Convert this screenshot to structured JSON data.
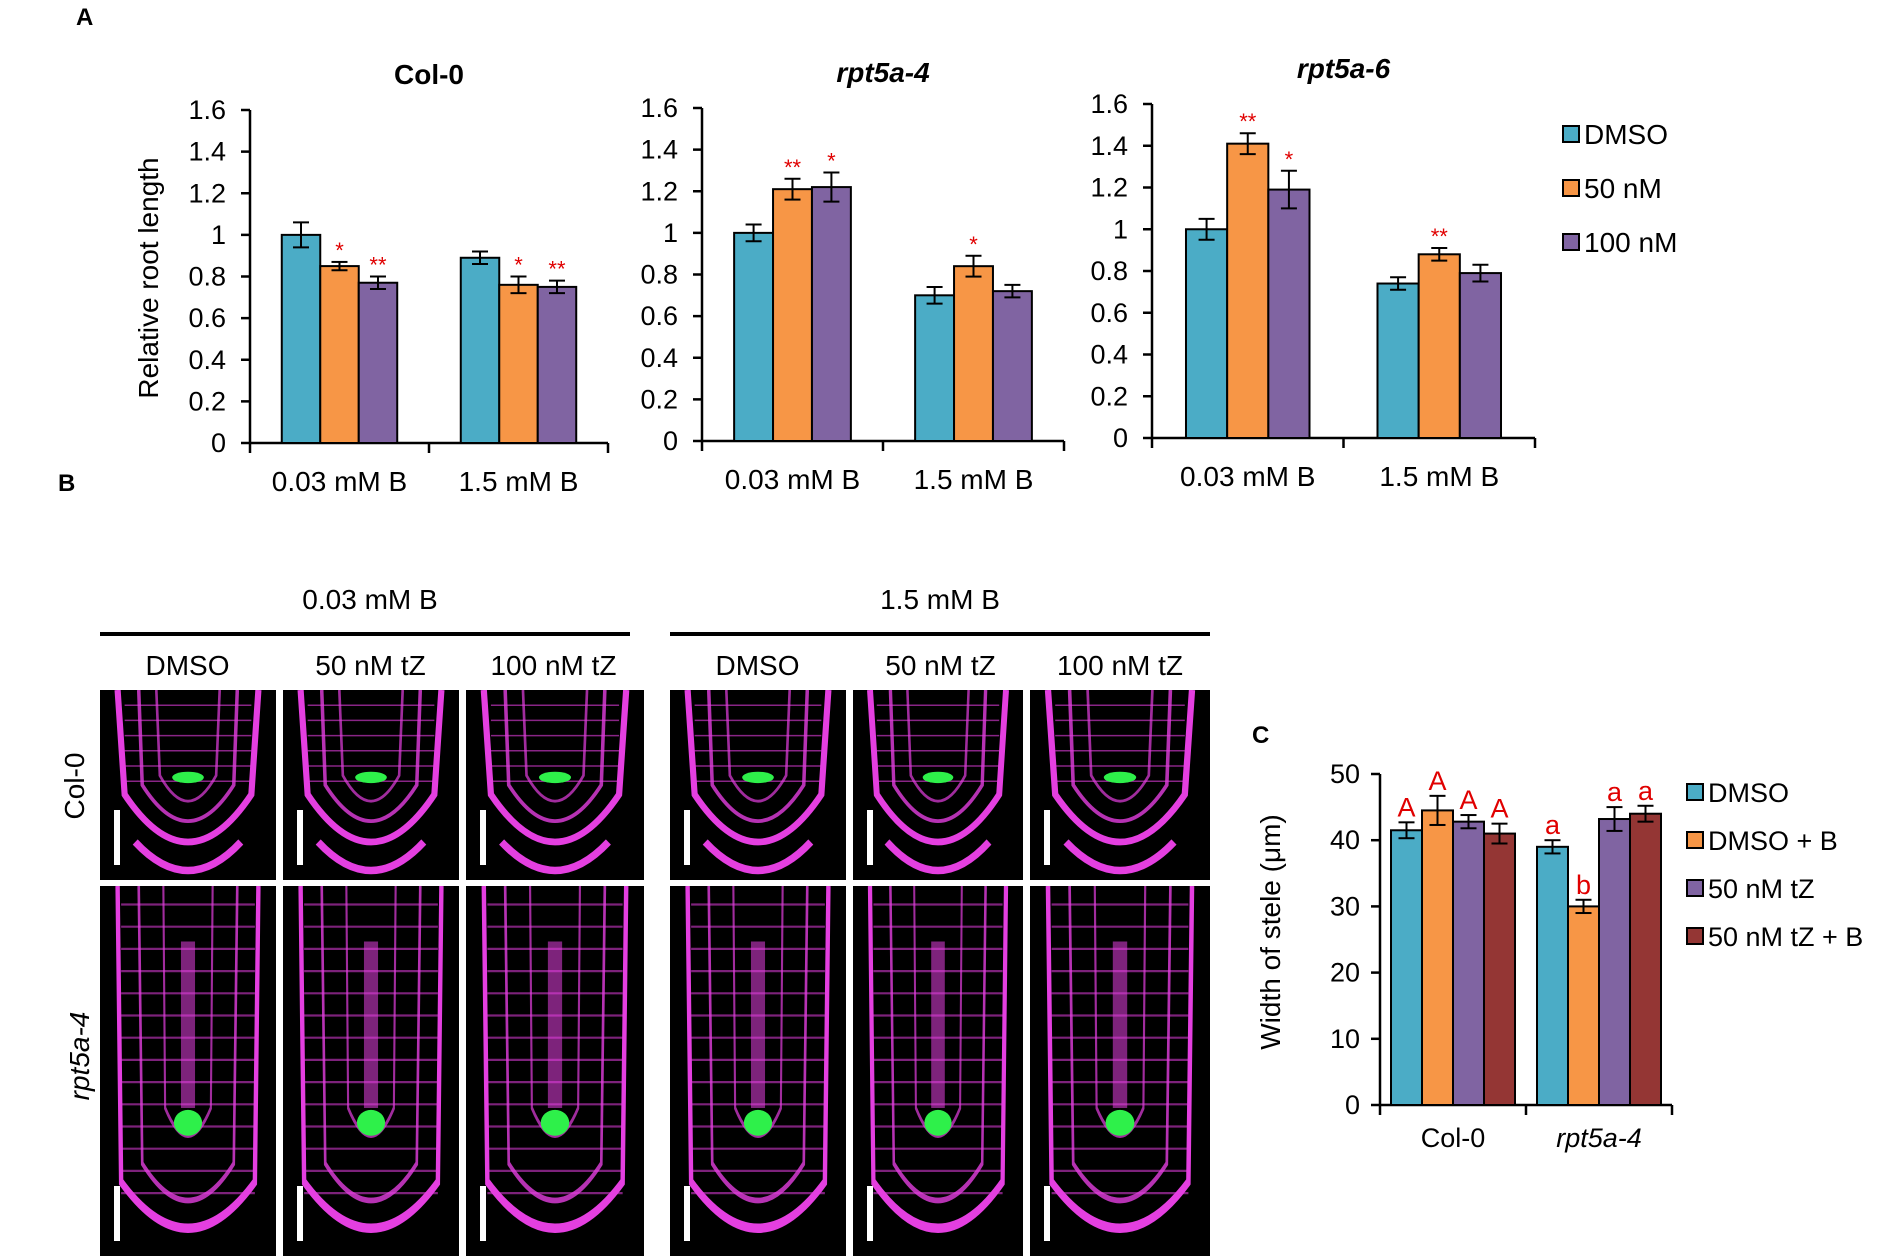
{
  "panels": {
    "A": "A",
    "B": "B",
    "C": "C"
  },
  "colors": {
    "dmso": "#4bacc6",
    "nm50": "#f79646",
    "nm100": "#8064a2",
    "tzb": "#943634",
    "sig": "#e00000",
    "magenta": "#e43fe0",
    "gfp": "#2ef04a"
  },
  "panelA": {
    "legend": [
      "DMSO",
      "50 nM",
      "100 nM"
    ],
    "ylabel": "Relative root length",
    "ticks": [
      "0",
      "0.2",
      "0.4",
      "0.6",
      "0.8",
      "1",
      "1.2",
      "1.4",
      "1.6"
    ],
    "groups": [
      "0.03 mM B",
      "1.5 mM B"
    ]
  },
  "chart_data": [
    {
      "type": "bar",
      "title": "Col-0",
      "ylabel": "Relative root length",
      "ylim": [
        0,
        1.6
      ],
      "categories": [
        "0.03 mM B",
        "1.5 mM B"
      ],
      "series": [
        {
          "name": "DMSO",
          "values": [
            1.0,
            0.89
          ],
          "errors": [
            0.06,
            0.03
          ],
          "sig": [
            "",
            ""
          ]
        },
        {
          "name": "50 nM",
          "values": [
            0.85,
            0.76
          ],
          "errors": [
            0.02,
            0.04
          ],
          "sig": [
            "*",
            "*"
          ]
        },
        {
          "name": "100 nM",
          "values": [
            0.77,
            0.75
          ],
          "errors": [
            0.03,
            0.03
          ],
          "sig": [
            "**",
            "**"
          ]
        }
      ]
    },
    {
      "type": "bar",
      "title": "rpt5a-4",
      "ylabel": "",
      "ylim": [
        0,
        1.6
      ],
      "categories": [
        "0.03 mM B",
        "1.5 mM B"
      ],
      "series": [
        {
          "name": "DMSO",
          "values": [
            1.0,
            0.7
          ],
          "errors": [
            0.04,
            0.04
          ],
          "sig": [
            "",
            ""
          ]
        },
        {
          "name": "50 nM",
          "values": [
            1.21,
            0.84
          ],
          "errors": [
            0.05,
            0.05
          ],
          "sig": [
            "**",
            "*"
          ]
        },
        {
          "name": "100 nM",
          "values": [
            1.22,
            0.72
          ],
          "errors": [
            0.07,
            0.03
          ],
          "sig": [
            "*",
            ""
          ]
        }
      ]
    },
    {
      "type": "bar",
      "title": "rpt5a-6",
      "ylabel": "",
      "ylim": [
        0,
        1.6
      ],
      "categories": [
        "0.03 mM B",
        "1.5 mM B"
      ],
      "series": [
        {
          "name": "DMSO",
          "values": [
            1.0,
            0.74
          ],
          "errors": [
            0.05,
            0.03
          ],
          "sig": [
            "",
            ""
          ]
        },
        {
          "name": "50 nM",
          "values": [
            1.41,
            0.88
          ],
          "errors": [
            0.05,
            0.03
          ],
          "sig": [
            "**",
            "**"
          ]
        },
        {
          "name": "100 nM",
          "values": [
            1.19,
            0.79
          ],
          "errors": [
            0.09,
            0.04
          ],
          "sig": [
            "*",
            ""
          ]
        }
      ]
    },
    {
      "type": "bar",
      "title": "",
      "ylabel": "Width of stele (μm)",
      "ylim": [
        0,
        50
      ],
      "categories": [
        "Col-0",
        "rpt5a-4"
      ],
      "series": [
        {
          "name": "DMSO",
          "values": [
            41.5,
            39.0
          ],
          "errors": [
            1.2,
            1.0
          ],
          "sig": [
            "A",
            "a"
          ]
        },
        {
          "name": "DMSO + B",
          "values": [
            44.5,
            30.0
          ],
          "errors": [
            2.2,
            1.0
          ],
          "sig": [
            "A",
            "b"
          ]
        },
        {
          "name": "50 nM tZ",
          "values": [
            42.8,
            43.2
          ],
          "errors": [
            1.0,
            1.8
          ],
          "sig": [
            "A",
            "a"
          ]
        },
        {
          "name": "50 nM tZ + B",
          "values": [
            41.0,
            44.0
          ],
          "errors": [
            1.5,
            1.2
          ],
          "sig": [
            "A",
            "a"
          ]
        }
      ]
    }
  ],
  "panelB": {
    "conditions": [
      "0.03 mM B",
      "1.5 mM B"
    ],
    "columns": [
      "DMSO",
      "50 nM tZ",
      "100 nM tZ",
      "DMSO",
      "50 nM tZ",
      "100 nM tZ"
    ],
    "rows": [
      "Col-0",
      "rpt5a-4"
    ]
  },
  "panelC": {
    "legend": [
      "DMSO",
      "DMSO + B",
      "50 nM tZ",
      "50 nM tZ + B"
    ],
    "ylabel": "Width of stele (μm)",
    "ticks": [
      "0",
      "10",
      "20",
      "30",
      "40",
      "50"
    ],
    "groups": [
      "Col-0",
      "rpt5a-4"
    ]
  }
}
